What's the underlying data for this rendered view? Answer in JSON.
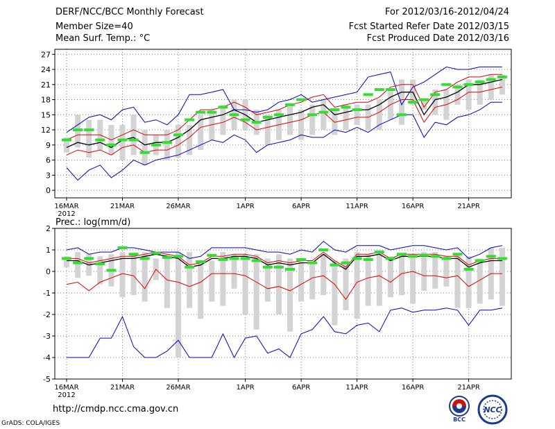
{
  "header": {
    "title": "DERF/NCC/BCC Monthly Forecast",
    "member_size": "Member Size=40",
    "variable": "Mean Surf. Temp.: °C",
    "for_period": "For 2012/03/16-2012/04/24",
    "started_refer": "Fcst Started Refer Date 2012/03/15",
    "produced": "Fcst Produced Date 2012/03/16"
  },
  "footer": {
    "url": "http://cmdp.ncc.cma.gov.cn",
    "grads": "GrADS: COLA/IGES",
    "logo_bcc": "BCC",
    "logo_ncc": "NCC"
  },
  "colors": {
    "box": "#d3d3d3",
    "envelope": "#0000cc",
    "spread": "#dd0000",
    "mean": "#000000",
    "marker": "#33dd33",
    "grid": "#777777"
  },
  "chart_data": [
    {
      "type": "box-ensemble",
      "title": "Mean Surf. Temp.: °C",
      "ylim": [
        -1.5,
        28
      ],
      "yticks": [
        0,
        3,
        6,
        9,
        12,
        15,
        18,
        21,
        24,
        27
      ],
      "x_tick_labels": [
        "16MAR",
        "21MAR",
        "26MAR",
        "1APR",
        "6APR",
        "11APR",
        "16APR",
        "21APR"
      ],
      "x_tick_days": [
        0,
        5,
        10,
        16,
        21,
        26,
        31,
        36
      ],
      "x_year_label": "2012",
      "ndays": 40,
      "box_low": [
        7.5,
        8.5,
        6.5,
        8,
        7,
        6,
        7,
        5,
        7,
        6,
        6.5,
        7,
        8,
        10,
        11,
        12,
        12,
        11,
        9,
        10,
        11,
        10,
        11,
        12,
        11,
        12,
        13,
        12,
        12,
        14,
        13,
        17,
        16,
        15,
        14,
        17,
        16,
        17,
        18,
        19
      ],
      "box_high": [
        10.5,
        15,
        14,
        14,
        13,
        13,
        15,
        12,
        11,
        12,
        13,
        13,
        15,
        16,
        17,
        18,
        18,
        16,
        15,
        16,
        17,
        16,
        17,
        18,
        16,
        17,
        17,
        17,
        18,
        20,
        22,
        22,
        18,
        20,
        20,
        21,
        22,
        22,
        23,
        23
      ],
      "marker": [
        10,
        12,
        12,
        10,
        9,
        10,
        10,
        7.5,
        9,
        9.5,
        11,
        14,
        15.5,
        15.5,
        16.5,
        15,
        14,
        13.5,
        14.5,
        15,
        17,
        18,
        15,
        15.5,
        16,
        16.5,
        16,
        19,
        20,
        20,
        15,
        17.5,
        18,
        19,
        21,
        20.5,
        21,
        21.5,
        22,
        22.5
      ],
      "mean": [
        8.5,
        9.5,
        9,
        9.5,
        8.5,
        10,
        10.5,
        9,
        9.5,
        9.5,
        10.5,
        12,
        14,
        14.5,
        15,
        16,
        15,
        13.5,
        14,
        14.5,
        15,
        15.5,
        16.5,
        17,
        15,
        15.5,
        16,
        16,
        17,
        18.5,
        19.5,
        19.5,
        15,
        18,
        18.5,
        19.5,
        21,
        21,
        21.5,
        22
      ],
      "upper": [
        10,
        11,
        11,
        11,
        10,
        11,
        12,
        11,
        11,
        11,
        12,
        14,
        16,
        16,
        16.5,
        17.5,
        16.5,
        15,
        15.5,
        16,
        17,
        17.5,
        18.5,
        19,
        16.5,
        17,
        17.5,
        17.5,
        18.5,
        20.5,
        21,
        21,
        16.5,
        19.5,
        20,
        21.5,
        22.5,
        22.5,
        23,
        23
      ],
      "lower": [
        7,
        8,
        7.5,
        8,
        7,
        8.5,
        9,
        7.5,
        8,
        8,
        9,
        10.5,
        12.5,
        13,
        13.5,
        14.5,
        13.5,
        12,
        12.5,
        13,
        13.5,
        14,
        15,
        15.5,
        13.5,
        14,
        14.5,
        14.5,
        15.5,
        17,
        18,
        18,
        13.5,
        16.5,
        17,
        18,
        19.5,
        19.5,
        20,
        20.5
      ],
      "env_max": [
        11.5,
        13,
        14.5,
        15,
        14,
        16,
        16.5,
        13.5,
        14,
        13,
        15,
        19,
        19,
        19.5,
        20,
        16,
        16,
        15.5,
        16,
        17.5,
        18,
        19,
        17.5,
        18,
        18.5,
        19,
        19.5,
        22.5,
        23,
        23.5,
        17,
        20.5,
        21.5,
        23,
        24.5,
        24,
        24,
        24.5,
        24.5,
        24.5
      ],
      "env_min": [
        4.5,
        2,
        4,
        5,
        2.5,
        4,
        6,
        5,
        6,
        6.5,
        7,
        8,
        9,
        10,
        9.5,
        11,
        10,
        7.5,
        9,
        9.5,
        10,
        11,
        10.5,
        10.5,
        12,
        11.5,
        12.5,
        11.5,
        13,
        14,
        15,
        15,
        10.5,
        13.5,
        13,
        14.5,
        15,
        16,
        17.5,
        17.5
      ]
    },
    {
      "type": "box-ensemble",
      "title": "Prec.: log(mm/d)",
      "ylim": [
        -5,
        2
      ],
      "yticks": [
        -5,
        -4,
        -3,
        -2,
        -1,
        0,
        1,
        2
      ],
      "x_tick_labels": [
        "16MAR",
        "21MAR",
        "26MAR",
        "1APR",
        "6APR",
        "11APR",
        "16APR",
        "21APR"
      ],
      "x_tick_days": [
        0,
        5,
        10,
        16,
        21,
        26,
        31,
        36
      ],
      "x_year_label": "2012",
      "ndays": 40,
      "box_low": [
        0.2,
        -0.3,
        -0.2,
        -0.6,
        -0.7,
        -1.2,
        -1.1,
        -1.4,
        -0.4,
        -1.7,
        -4,
        -1.7,
        -2.2,
        -1.4,
        -1.6,
        -0.8,
        -2,
        -2.7,
        -1.4,
        -2,
        -2.8,
        -1.4,
        -1.3,
        -1.1,
        -2.5,
        -1.8,
        -2.2,
        -1.6,
        -1.6,
        -1.2,
        -1.1,
        -1.5,
        -0.9,
        -0.8,
        -0.7,
        -1.7,
        -1.7,
        -1.5,
        -1.3,
        -1.6
      ],
      "box_high": [
        0.7,
        0.9,
        0.8,
        0.7,
        0.8,
        0.9,
        0.8,
        0.9,
        0.6,
        0.8,
        0.9,
        0.9,
        0.5,
        0.5,
        0.9,
        0.8,
        0.8,
        0.8,
        0.6,
        0.8,
        0.6,
        0.6,
        0.4,
        0.8,
        0.5,
        0.6,
        0.9,
        0.8,
        0.9,
        0.7,
        0.8,
        0.8,
        0.9,
        0.9,
        0.7,
        0.8,
        0.7,
        0.6,
        1.1,
        1.1
      ],
      "marker": [
        0.6,
        0.4,
        0.6,
        0.35,
        0.05,
        1.1,
        0.8,
        0.6,
        0.85,
        0.65,
        0.7,
        0.2,
        0.45,
        0.75,
        0.55,
        0.6,
        0.6,
        0.5,
        0.2,
        0.2,
        0.1,
        0.55,
        0.4,
        1.0,
        0.3,
        0.4,
        0.6,
        0.55,
        0.9,
        0.6,
        0.8,
        0.7,
        0.75,
        0.7,
        0.6,
        0.8,
        0.1,
        0.5,
        0.7,
        0.6
      ],
      "mean": [
        0.5,
        0.5,
        0.3,
        0.4,
        0.5,
        0.6,
        0.6,
        0.7,
        0.8,
        0.7,
        0.6,
        0.2,
        0.3,
        0.6,
        0.6,
        0.7,
        0.7,
        0.6,
        0.3,
        0.4,
        0.3,
        0.4,
        0.4,
        0.8,
        0.4,
        0.1,
        0.7,
        0.7,
        0.8,
        0.5,
        0.7,
        0.7,
        0.7,
        0.7,
        0.6,
        0.6,
        0.2,
        0.4,
        0.5,
        0.5
      ],
      "upper": [
        0.6,
        0.6,
        0.4,
        0.5,
        0.6,
        0.7,
        0.7,
        0.8,
        0.9,
        0.8,
        0.7,
        0.3,
        0.4,
        0.7,
        0.7,
        0.8,
        0.8,
        0.7,
        0.4,
        0.5,
        0.4,
        0.5,
        0.5,
        0.9,
        0.5,
        0.2,
        0.8,
        0.8,
        0.9,
        0.6,
        0.8,
        0.8,
        0.8,
        0.8,
        0.7,
        0.7,
        0.3,
        0.5,
        0.6,
        0.6
      ],
      "lower": [
        -0.6,
        -0.5,
        -0.9,
        -0.5,
        -0.3,
        -0.1,
        -0.2,
        -0.8,
        0.1,
        -0.4,
        -0.5,
        -0.7,
        -0.5,
        -0.1,
        -0.1,
        -0.1,
        -0.2,
        -0.5,
        -0.8,
        -0.7,
        -0.9,
        -0.6,
        -0.3,
        -0.2,
        -0.6,
        -1.3,
        -0.5,
        -0.3,
        -0.2,
        -0.5,
        -0.1,
        0,
        -0.2,
        -0.2,
        -0.3,
        -0.2,
        -0.7,
        -0.4,
        -0.1,
        -0.1
      ],
      "env_max": [
        1.0,
        1.1,
        0.8,
        0.9,
        0.9,
        1.1,
        1.1,
        1.0,
        0.9,
        0.9,
        0.9,
        0.6,
        0.7,
        1.1,
        1.1,
        1.1,
        1.1,
        1.0,
        0.9,
        0.9,
        0.8,
        1.0,
        0.9,
        1.4,
        1.0,
        0.9,
        1.2,
        1.2,
        1.2,
        1.0,
        1.1,
        1.2,
        1.2,
        1.1,
        1.0,
        1.1,
        0.6,
        0.8,
        1.1,
        1.2
      ],
      "env_min": [
        -4,
        -4,
        -4,
        -3.1,
        -3.1,
        -2.1,
        -3.5,
        -4,
        -4,
        -3.7,
        -3.2,
        -4,
        -4,
        -4,
        -2.9,
        -4,
        -3.1,
        -3,
        -3.8,
        -3.6,
        -4,
        -2.9,
        -2.7,
        -2.1,
        -2.8,
        -2.9,
        -2.5,
        -2.4,
        -2.8,
        -1.8,
        -1.7,
        -1.9,
        -1.8,
        -1.8,
        -1.7,
        -1.8,
        -2.5,
        -1.8,
        -1.8,
        -1.7
      ]
    }
  ]
}
